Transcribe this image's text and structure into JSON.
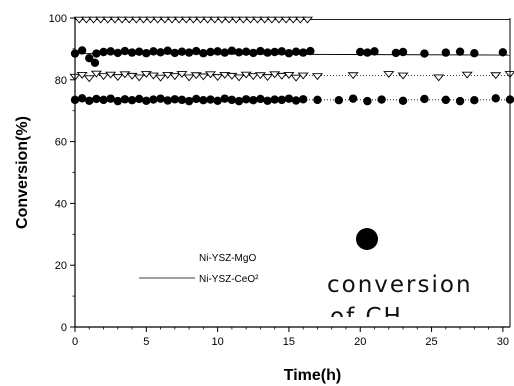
{
  "chart_data": {
    "type": "scatter",
    "title": "",
    "xlabel": "Time(h)",
    "ylabel": "Conversion(%)",
    "xlim": [
      0,
      30.5
    ],
    "ylim": [
      0,
      100
    ],
    "x_ticks": [
      0,
      5,
      10,
      15,
      20,
      25,
      30
    ],
    "y_ticks": [
      0,
      20,
      40,
      60,
      80,
      100
    ],
    "legend": [
      {
        "label": "Ni-YSZ-MgO",
        "line": "none"
      },
      {
        "label": "Ni-YSZ-CeO²",
        "line": "solid"
      }
    ],
    "overlay": {
      "label_line1": "conversion",
      "label_line2": "of CH",
      "marker": "large filled circle"
    },
    "series": [
      {
        "marker": "open-triangle-down",
        "line": "solid",
        "x_start": 0,
        "x_end": 30.5,
        "values_level": 99.5,
        "x": [
          0.3,
          0.8,
          1.3,
          1.8,
          2.3,
          2.8,
          3.3,
          3.8,
          4.3,
          4.8,
          5.3,
          5.8,
          6.3,
          6.8,
          7.3,
          7.8,
          8.3,
          8.8,
          9.3,
          9.8,
          10.3,
          10.8,
          11.3,
          11.8,
          12.3,
          12.8,
          13.3,
          13.8,
          14.3,
          14.8,
          15.3,
          15.8,
          16.3
        ]
      },
      {
        "marker": "filled-circle",
        "line": "solid",
        "x_start": 0,
        "x_end": 30.5,
        "x": [
          0,
          0.5,
          1.0,
          1.5,
          2,
          2.5,
          3,
          3.5,
          4,
          4.5,
          5,
          5.5,
          6,
          6.5,
          7,
          7.5,
          8,
          8.5,
          9,
          9.5,
          10,
          10.5,
          11,
          11.5,
          12,
          12.5,
          13,
          13.5,
          14,
          14.5,
          15,
          15.5,
          16,
          16.5,
          20,
          20.5,
          21,
          22.5,
          23,
          24.5,
          26,
          27,
          28,
          30
        ],
        "y": [
          88.5,
          89.5,
          87,
          88.5,
          89,
          89.2,
          88.7,
          89.3,
          88.8,
          89.1,
          88.6,
          89.2,
          88.9,
          89.4,
          88.7,
          89.1,
          88.8,
          89.3,
          88.6,
          89,
          89.2,
          88.8,
          89.4,
          88.9,
          89.1,
          88.7,
          89.3,
          88.8,
          89,
          89.2,
          88.6,
          89.1,
          88.8,
          89.3,
          89,
          88.8,
          89.2,
          88.7,
          89,
          88.5,
          88.8,
          89.1,
          88.6,
          88.9
        ],
        "bump": [
          {
            "x": 1.4,
            "y": 85.5
          }
        ],
        "line_y_start": 88.5,
        "line_y_end": 88.0
      },
      {
        "marker": "open-triangle-down",
        "line": "dotted",
        "x_start": 0,
        "x_end": 30.5,
        "x": [
          0,
          0.5,
          1.0,
          1.5,
          2,
          2.5,
          3,
          3.5,
          4,
          4.5,
          5,
          5.5,
          6,
          6.5,
          7,
          7.5,
          8,
          8.5,
          9,
          9.5,
          10,
          10.5,
          11,
          11.5,
          12,
          12.5,
          13,
          13.5,
          14,
          14.5,
          15,
          15.5,
          16,
          17,
          19.5,
          22,
          23,
          25.5,
          27.5,
          29.5,
          30.5
        ],
        "y": [
          81,
          81.6,
          80.5,
          82,
          81.2,
          81.7,
          80.9,
          81.8,
          81.3,
          80.8,
          81.9,
          81.4,
          80.7,
          81.6,
          81.2,
          81.9,
          80.8,
          81.5,
          81.1,
          81.8,
          80.9,
          81.6,
          81.3,
          80.8,
          81.7,
          81.2,
          81.5,
          80.9,
          81.8,
          81.3,
          81.6,
          80.7,
          81.4,
          81.2,
          81.5,
          81.9,
          81.4,
          80.8,
          81.7,
          81.5,
          81.9
        ]
      },
      {
        "marker": "filled-circle",
        "line": "dotted",
        "x_start": 0,
        "x_end": 30.5,
        "x": [
          0,
          0.5,
          1.0,
          1.5,
          2,
          2.5,
          3,
          3.5,
          4,
          4.5,
          5,
          5.5,
          6,
          6.5,
          7,
          7.5,
          8,
          8.5,
          9,
          9.5,
          10,
          10.5,
          11,
          11.5,
          12,
          12.5,
          13,
          13.5,
          14,
          14.5,
          15,
          15.5,
          16,
          17,
          18.5,
          19.5,
          20.5,
          21.5,
          23,
          24.5,
          26,
          27,
          28,
          29.5,
          30.5
        ],
        "y": [
          73.5,
          74,
          73.2,
          73.8,
          73.5,
          73.9,
          73.1,
          73.7,
          73.4,
          73.8,
          73.2,
          73.6,
          73.9,
          73.3,
          73.7,
          73.5,
          73.1,
          73.8,
          73.4,
          73.6,
          73.2,
          73.9,
          73.5,
          73.1,
          73.7,
          73.4,
          73.8,
          73.2,
          73.6,
          73.5,
          73.9,
          73.3,
          73.7,
          73.5,
          73.4,
          73.9,
          73.1,
          73.6,
          73.2,
          73.8,
          73.5,
          73.1,
          73.4,
          74,
          73.6
        ]
      }
    ]
  }
}
